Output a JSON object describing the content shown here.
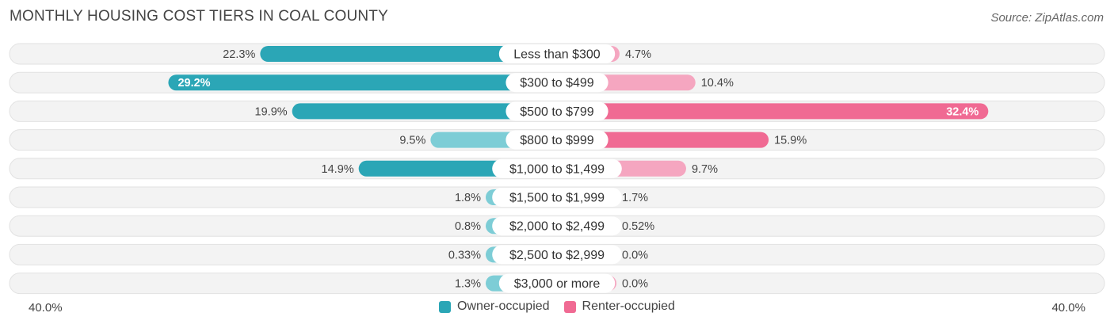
{
  "title": "MONTHLY HOUSING COST TIERS IN COAL COUNTY",
  "source": "Source: ZipAtlas.com",
  "axis": {
    "left_label": "40.0%",
    "right_label": "40.0%"
  },
  "legend": {
    "owner_label": "Owner-occupied",
    "renter_label": "Renter-occupied"
  },
  "colors": {
    "owner": "#2ba6b6",
    "owner_light": "#7dcdd6",
    "renter": "#f06a93",
    "renter_light": "#f5a6c0",
    "track": "#eeeeee"
  },
  "chart_data": {
    "type": "bar",
    "orientation": "horizontal-diverging",
    "categories": [
      "Less than $300",
      "$300 to $499",
      "$500 to $799",
      "$800 to $999",
      "$1,000 to $1,499",
      "$1,500 to $1,999",
      "$2,000 to $2,499",
      "$2,500 to $2,999",
      "$3,000 or more"
    ],
    "series": [
      {
        "name": "Owner-occupied",
        "values": [
          22.3,
          29.2,
          19.9,
          9.5,
          14.9,
          1.8,
          0.8,
          0.33,
          1.3
        ],
        "labels": [
          "22.3%",
          "29.2%",
          "19.9%",
          "9.5%",
          "14.9%",
          "1.8%",
          "0.8%",
          "0.33%",
          "1.3%"
        ]
      },
      {
        "name": "Renter-occupied",
        "values": [
          4.7,
          10.4,
          32.4,
          15.9,
          9.7,
          1.7,
          0.52,
          0.0,
          0.0
        ],
        "labels": [
          "4.7%",
          "10.4%",
          "32.4%",
          "15.9%",
          "9.7%",
          "1.7%",
          "0.52%",
          "0.0%",
          "0.0%"
        ]
      }
    ],
    "xlim": [
      -40,
      40
    ],
    "legend_position": "bottom-center"
  }
}
